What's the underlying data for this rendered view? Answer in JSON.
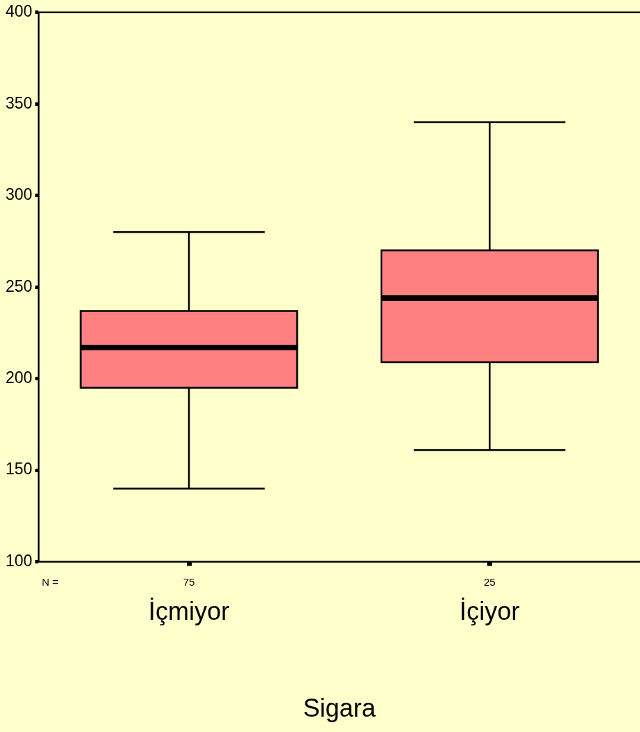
{
  "chart_data": {
    "type": "box",
    "xlabel": "Sigara",
    "categories": [
      "İçmiyor",
      "İçiyor"
    ],
    "boxes": [
      {
        "low": 140,
        "q1": 195,
        "median": 217,
        "q3": 237,
        "high": 280
      },
      {
        "low": 161,
        "q1": 209,
        "median": 244,
        "q3": 270,
        "high": 340
      }
    ],
    "color": "#ff8080",
    "ylim": [
      100,
      400
    ],
    "yticks": [
      100,
      150,
      200,
      250,
      300,
      350,
      400
    ],
    "grid": false,
    "legend": false,
    "annotations": [
      "N =",
      "75",
      "25"
    ]
  }
}
